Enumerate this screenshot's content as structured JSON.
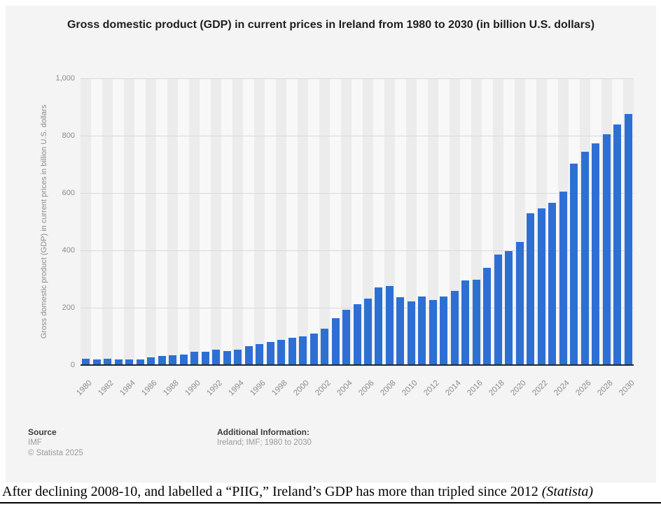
{
  "title": {
    "text": "Gross domestic product (GDP) in current prices in Ireland from 1980 to 2030 (in billion U.S. dollars)"
  },
  "chart_data": {
    "type": "bar",
    "title": "Gross domestic product (GDP) in current prices in Ireland from 1980 to 2030 (in billion U.S. dollars)",
    "xlabel": "",
    "ylabel": "Gross domestic product (GDP) in current prices in billion U.S. dollars",
    "ylim": [
      0,
      1000
    ],
    "grid": true,
    "legend": false,
    "bar_color": "#2e6fd3",
    "y_ticks": [
      0,
      200,
      400,
      600,
      800,
      1000
    ],
    "y_tick_labels": [
      "0",
      "200",
      "400",
      "600",
      "800",
      "1,000"
    ],
    "x_tick_step": 2,
    "categories": [
      1980,
      1981,
      1982,
      1983,
      1984,
      1985,
      1986,
      1987,
      1988,
      1989,
      1990,
      1991,
      1992,
      1993,
      1994,
      1995,
      1996,
      1997,
      1998,
      1999,
      2000,
      2001,
      2002,
      2003,
      2004,
      2005,
      2006,
      2007,
      2008,
      2009,
      2010,
      2011,
      2012,
      2013,
      2014,
      2015,
      2016,
      2017,
      2018,
      2019,
      2020,
      2021,
      2022,
      2023,
      2024,
      2025,
      2026,
      2027,
      2028,
      2029,
      2030
    ],
    "values": [
      21.8,
      19.7,
      20.9,
      20.0,
      19.3,
      20.7,
      27.7,
      31.3,
      35.2,
      36.4,
      47.4,
      47.5,
      53.3,
      49.2,
      54.8,
      66.6,
      74.0,
      80.1,
      87.3,
      95.8,
      99.9,
      109.2,
      127.9,
      164.1,
      193.1,
      211.8,
      232.2,
      270.0,
      275.2,
      236.5,
      221.8,
      239.1,
      225.7,
      239.4,
      258.6,
      295.0,
      297.0,
      340.1,
      385.4,
      398.6,
      428.5,
      529.0,
      545.2,
      565.3,
      605.1,
      703.2,
      744.0,
      774.1,
      805.2,
      838.1,
      875.4
    ]
  },
  "footer": {
    "source_label": "Source",
    "source_value": "IMF",
    "copyright": "© Statista 2025",
    "additional_label": "Additional Information:",
    "additional_value": "Ireland; IMF; 1980 to 2030"
  },
  "caption": {
    "text": "After declining 2008-10, and labelled a “PIIG,” Ireland’s GDP has more than tripled since 2012 ",
    "source": "(Statista)"
  }
}
